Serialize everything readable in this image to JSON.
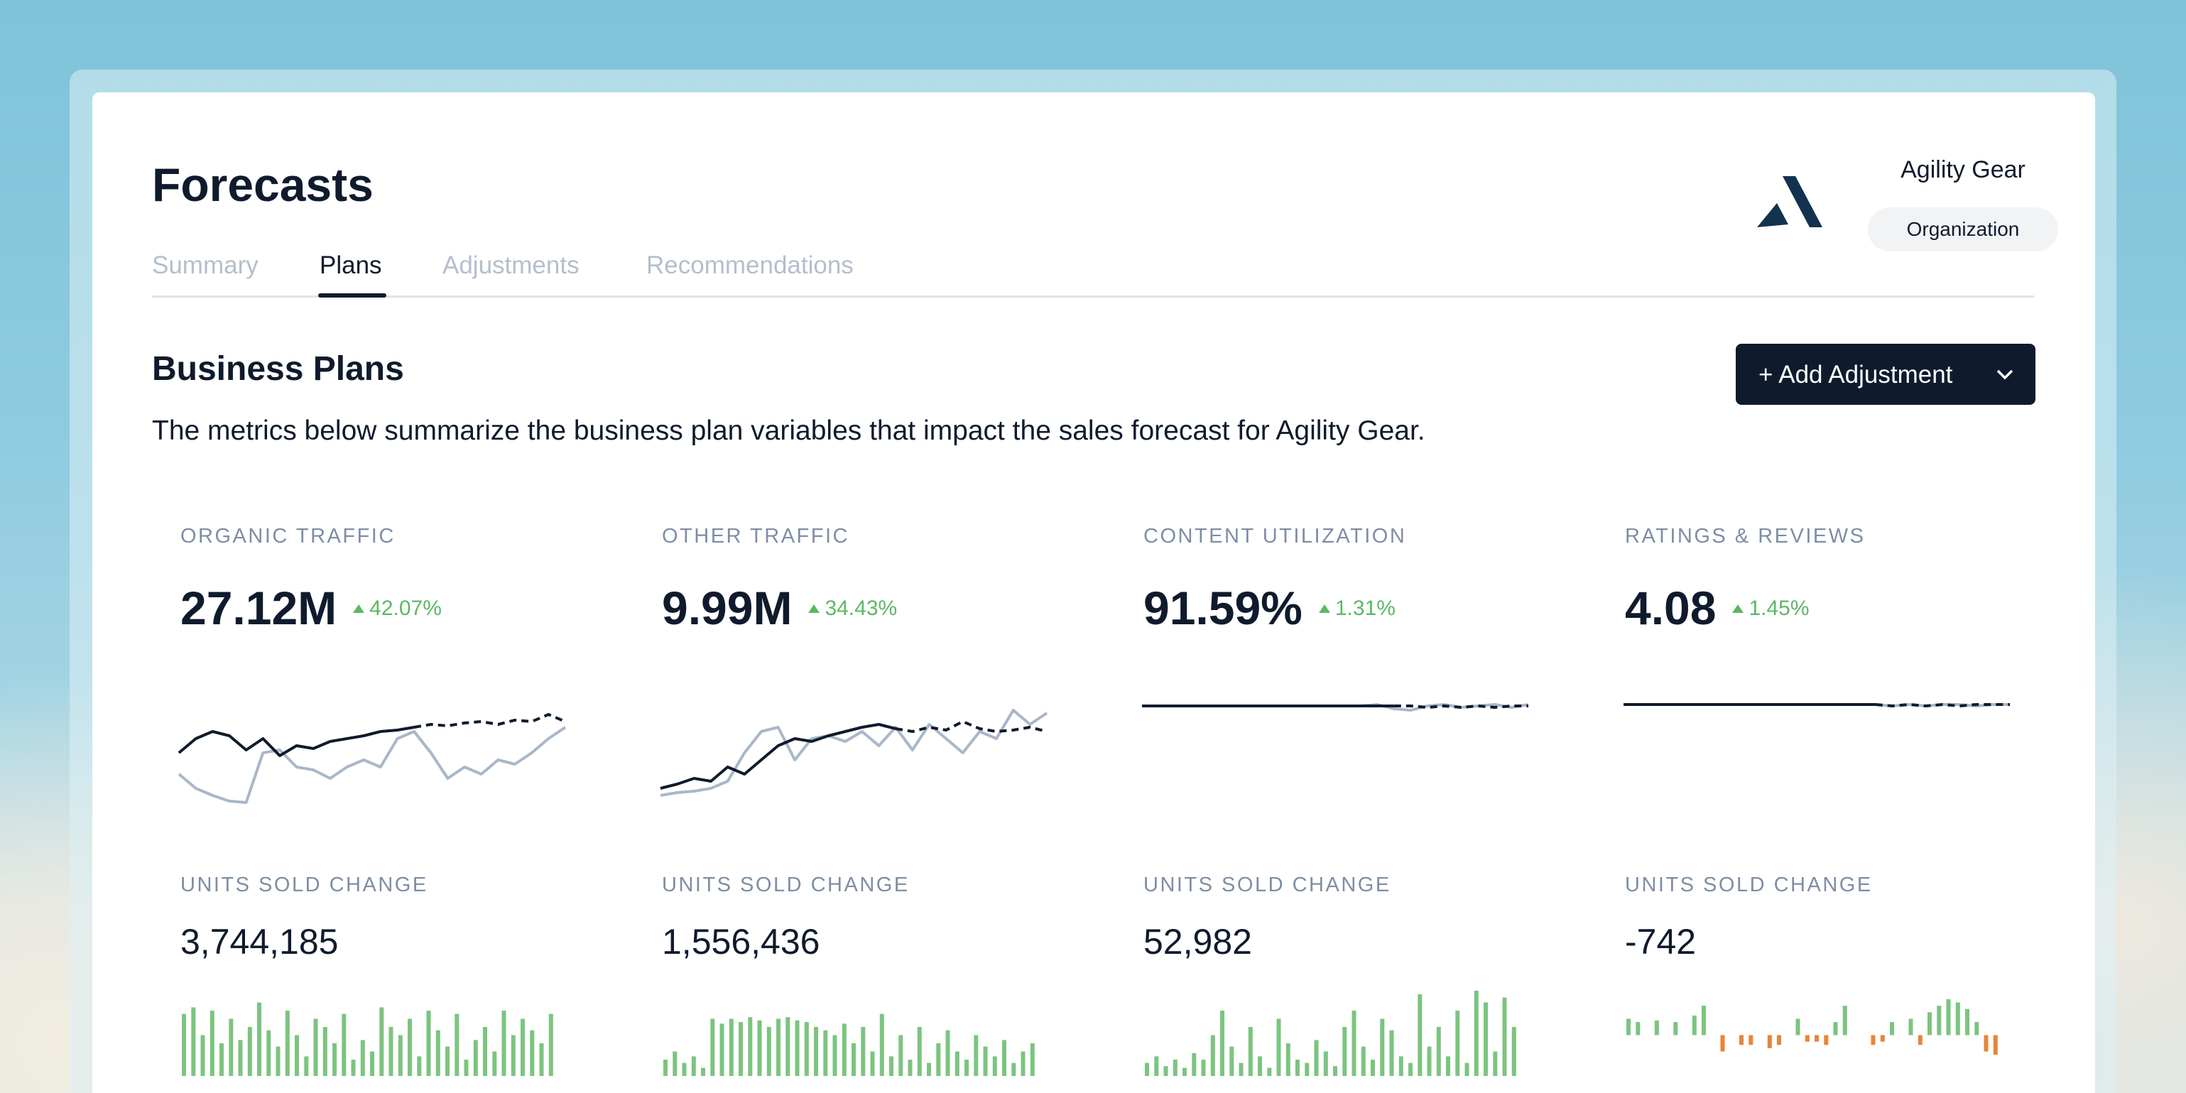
{
  "header": {
    "title": "Forecasts",
    "tabs": [
      "Summary",
      "Plans",
      "Adjustments",
      "Recommendations"
    ]
  },
  "org": {
    "name": "Agility Gear",
    "role": "Organization"
  },
  "section": {
    "title": "Business Plans",
    "button": "+ Add Adjustment",
    "description": "The metrics below summarize the business plan variables that impact the sales forecast for Agility Gear."
  },
  "metrics": [
    {
      "label": "ORGANIC TRAFFIC",
      "value": "27.12M",
      "change": "42.07%",
      "units_label": "UNITS SOLD CHANGE",
      "units_value": "3,744,185",
      "trend_ylim": [
        0,
        80
      ],
      "actual": [
        40,
        50,
        55,
        52,
        42,
        50,
        38,
        45,
        43,
        48,
        50,
        52,
        55,
        56,
        58,
        null,
        null,
        null,
        null,
        null,
        null,
        null,
        null,
        null
      ],
      "forecast": [
        null,
        null,
        null,
        null,
        null,
        null,
        null,
        null,
        null,
        null,
        null,
        null,
        null,
        null,
        58,
        60,
        59,
        61,
        62,
        60,
        63,
        62,
        67,
        62
      ],
      "comparison": [
        25,
        15,
        10,
        6,
        5,
        40,
        42,
        30,
        28,
        22,
        30,
        35,
        30,
        50,
        55,
        40,
        22,
        30,
        25,
        35,
        32,
        40,
        50,
        58
      ],
      "bars_ylim": [
        0,
        50
      ],
      "bars": [
        38,
        42,
        25,
        40,
        20,
        35,
        22,
        30,
        45,
        28,
        18,
        40,
        25,
        12,
        35,
        30,
        20,
        38,
        10,
        22,
        15,
        42,
        30,
        25,
        35,
        12,
        40,
        28,
        18,
        38,
        10,
        22,
        30,
        15,
        40,
        25,
        35,
        28,
        20,
        38
      ]
    },
    {
      "label": "OTHER TRAFFIC",
      "value": "9.99M",
      "change": "34.43%",
      "units_label": "UNITS SOLD CHANGE",
      "units_value": "1,556,436",
      "trend_ylim": [
        0,
        80
      ],
      "actual": [
        15,
        18,
        22,
        20,
        30,
        25,
        35,
        45,
        50,
        48,
        52,
        55,
        58,
        60,
        57,
        null,
        null,
        null,
        null,
        null,
        null,
        null,
        null,
        null
      ],
      "forecast": [
        null,
        null,
        null,
        null,
        null,
        null,
        null,
        null,
        null,
        null,
        null,
        null,
        null,
        null,
        57,
        55,
        58,
        56,
        62,
        57,
        55,
        56,
        58,
        55
      ],
      "comparison": [
        10,
        12,
        13,
        15,
        20,
        40,
        55,
        58,
        35,
        50,
        52,
        48,
        55,
        45,
        58,
        42,
        60,
        50,
        40,
        55,
        50,
        70,
        60,
        68
      ],
      "bars_ylim": [
        0,
        50
      ],
      "bars": [
        10,
        15,
        8,
        12,
        5,
        35,
        32,
        35,
        33,
        36,
        34,
        30,
        35,
        36,
        34,
        33,
        30,
        28,
        25,
        32,
        20,
        30,
        15,
        38,
        12,
        25,
        10,
        30,
        8,
        20,
        28,
        15,
        10,
        25,
        18,
        12,
        22,
        8,
        15,
        20
      ]
    },
    {
      "label": "CONTENT UTILIZATION",
      "value": "91.59%",
      "change": "1.31%",
      "units_label": "UNITS SOLD CHANGE",
      "units_value": "52,982",
      "trend_ylim": [
        0,
        80
      ],
      "actual": [
        73,
        73,
        73,
        73,
        73,
        73,
        73,
        73,
        73,
        73,
        73,
        73,
        73,
        73,
        73,
        73,
        null,
        null,
        null,
        null,
        null,
        null,
        null,
        null
      ],
      "forecast": [
        null,
        null,
        null,
        null,
        null,
        null,
        null,
        null,
        null,
        null,
        null,
        null,
        null,
        null,
        null,
        73,
        73,
        72,
        73,
        72,
        73,
        72,
        73,
        73
      ],
      "comparison": [
        73,
        73,
        73,
        73,
        73,
        73,
        73,
        73,
        73,
        73,
        73,
        73,
        73,
        73,
        74,
        71,
        70,
        73,
        74,
        72,
        73,
        74,
        72,
        74
      ],
      "bars_ylim": [
        0,
        50
      ],
      "bars": [
        8,
        12,
        6,
        10,
        5,
        14,
        10,
        25,
        40,
        18,
        8,
        30,
        12,
        5,
        35,
        20,
        10,
        8,
        22,
        15,
        6,
        30,
        40,
        18,
        10,
        35,
        28,
        12,
        8,
        50,
        18,
        30,
        12,
        40,
        8,
        55,
        45,
        15,
        48,
        30
      ]
    },
    {
      "label": "RATINGS & REVIEWS",
      "value": "4.08",
      "change": "1.45%",
      "units_label": "UNITS SOLD CHANGE",
      "units_value": "-742",
      "trend_ylim": [
        0,
        80
      ],
      "actual": [
        74,
        74,
        74,
        74,
        74,
        74,
        74,
        74,
        74,
        74,
        74,
        74,
        74,
        74,
        74,
        74,
        null,
        null,
        null,
        null,
        null,
        null,
        null,
        null
      ],
      "forecast": [
        null,
        null,
        null,
        null,
        null,
        null,
        null,
        null,
        null,
        null,
        null,
        null,
        null,
        null,
        null,
        74,
        73,
        74,
        73,
        74,
        73,
        74,
        74,
        74
      ],
      "comparison": [
        74,
        74,
        74,
        74,
        74,
        74,
        74,
        74,
        74,
        74,
        74,
        74,
        74,
        74,
        74,
        74,
        73,
        74,
        73,
        74,
        74,
        73,
        74,
        74
      ],
      "bars_ylim": [
        -25,
        25
      ],
      "bars": [
        10,
        8,
        0,
        9,
        0,
        8,
        0,
        12,
        18,
        0,
        -10,
        0,
        -6,
        -6,
        0,
        -8,
        -6,
        0,
        10,
        -4,
        -4,
        -6,
        8,
        18,
        0,
        0,
        -6,
        -4,
        8,
        0,
        10,
        -6,
        14,
        18,
        22,
        20,
        16,
        8,
        -10,
        -12
      ]
    }
  ]
}
